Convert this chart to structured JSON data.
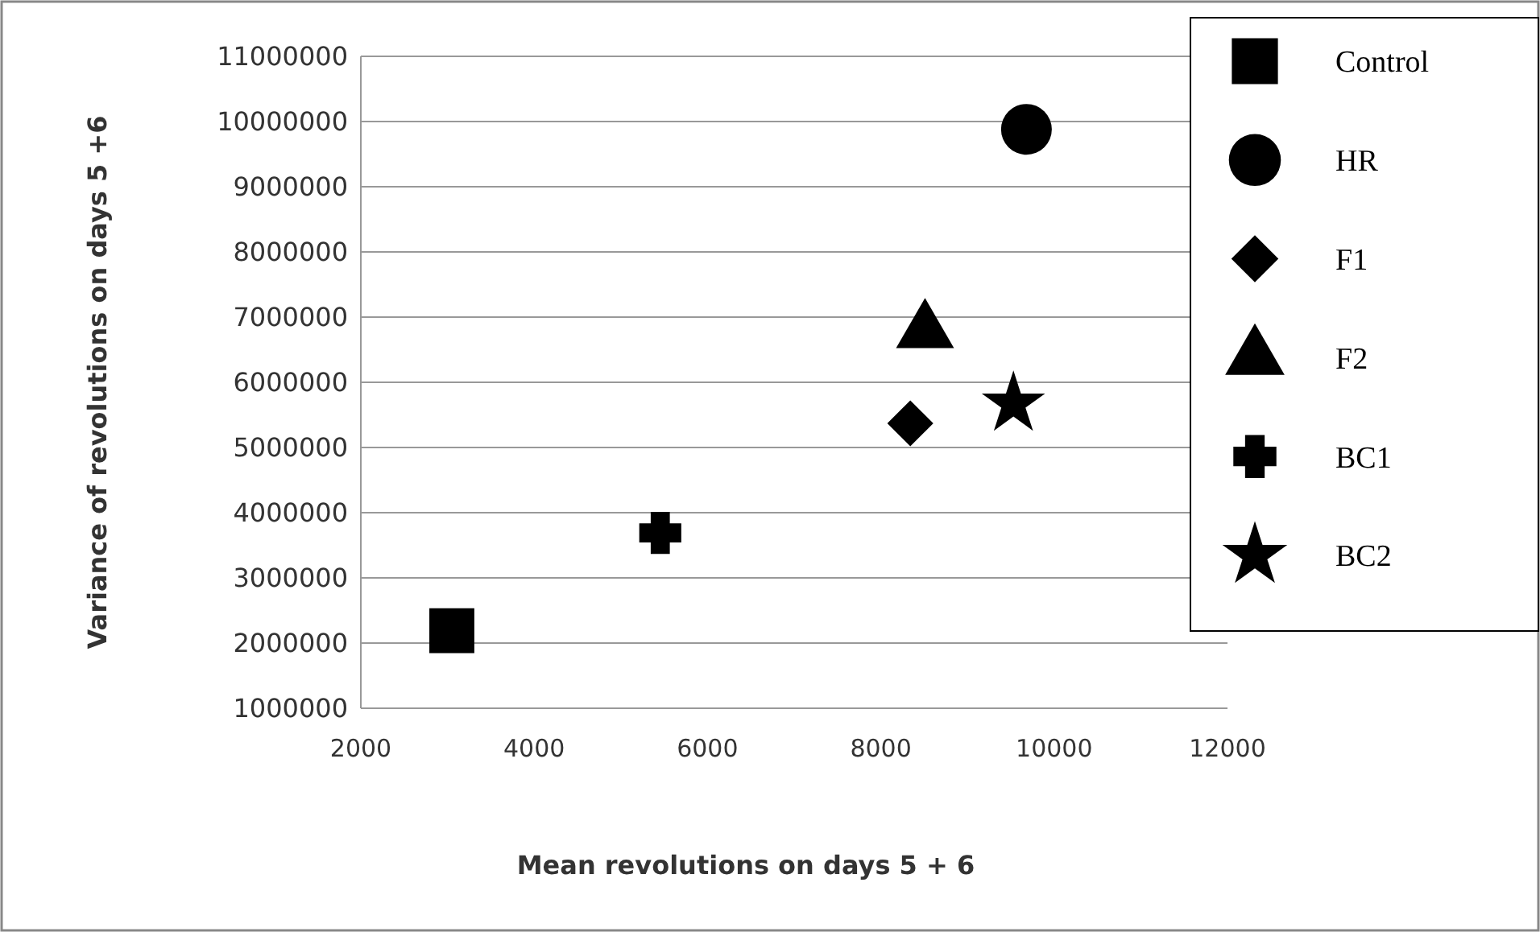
{
  "chart_data": {
    "type": "scatter",
    "xlabel": "Mean revolutions on days 5 + 6",
    "ylabel": "Variance of revolutions on days 5 +6",
    "xlim": [
      2000,
      12000
    ],
    "xticks": [
      2000,
      4000,
      6000,
      8000,
      10000,
      12000
    ],
    "ylim": [
      1000000,
      11000000
    ],
    "yticks": [
      1000000,
      2000000,
      3000000,
      4000000,
      5000000,
      6000000,
      7000000,
      8000000,
      9000000,
      10000000,
      11000000
    ],
    "grid": "y",
    "legend": "right",
    "series": [
      {
        "name": "Control",
        "color": "#000000",
        "marker": "square",
        "x": [
          3050
        ],
        "values": [
          2190000
        ]
      },
      {
        "name": "HR",
        "color": "#000000",
        "marker": "circle",
        "x": [
          9680
        ],
        "values": [
          9880000
        ]
      },
      {
        "name": "F1",
        "color": "#000000",
        "marker": "diamond",
        "x": [
          8340
        ],
        "values": [
          5370000
        ]
      },
      {
        "name": "F2",
        "color": "#000000",
        "marker": "triangle",
        "x": [
          8510
        ],
        "values": [
          6780000
        ]
      },
      {
        "name": "BC1",
        "color": "#000000",
        "marker": "cross",
        "x": [
          5455
        ],
        "values": [
          3690000
        ]
      },
      {
        "name": "BC2",
        "color": "#000000",
        "marker": "star",
        "x": [
          9530
        ],
        "values": [
          5670000
        ]
      }
    ]
  }
}
